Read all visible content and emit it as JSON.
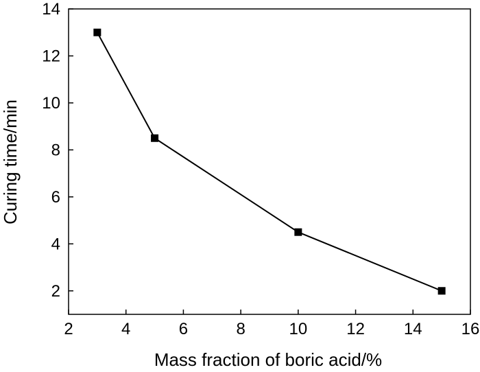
{
  "chart_data": {
    "type": "line",
    "title": "",
    "xlabel": "Mass fraction of boric acid/%",
    "ylabel": "Curing time/min",
    "xlim": [
      2,
      16
    ],
    "ylim": [
      1,
      14
    ],
    "xticks": [
      2,
      4,
      6,
      8,
      10,
      12,
      14,
      16
    ],
    "yticks": [
      2,
      4,
      6,
      8,
      10,
      12,
      14
    ],
    "grid": false,
    "legend": "none",
    "marker": "square",
    "series": [
      {
        "x": [
          3,
          5,
          10,
          15
        ],
        "y": [
          13,
          8.5,
          4.5,
          2
        ],
        "color": "#000000"
      }
    ]
  }
}
